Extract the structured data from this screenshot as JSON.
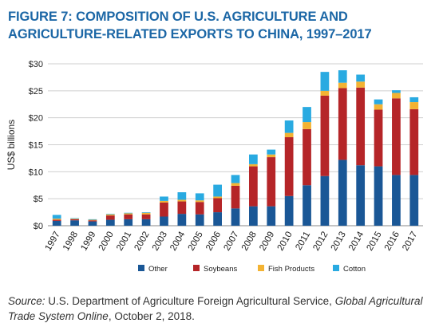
{
  "title": "FIGURE 7: COMPOSITION OF U.S. AGRICULTURE AND AGRICULTURE-RELATED EXPORTS TO CHINA, 1997–2017",
  "source": {
    "label": "Source:",
    "text_before": " U.S. Department of Agriculture Foreign Agricultural Service, ",
    "publication": "Global Agricultural Trade System Online",
    "text_after": ", October 2, 2018."
  },
  "colors": {
    "title": "#1c67a6",
    "Other": "#1a5796",
    "Soybeans": "#b52528",
    "Fish Products": "#f3b333",
    "Cotton": "#29aae1"
  },
  "chart_data": {
    "type": "bar",
    "stacked": true,
    "title": "",
    "xlabel": "",
    "ylabel": "US$ billions",
    "ylim": [
      0,
      30
    ],
    "yticks": [
      0,
      5,
      10,
      15,
      20,
      25,
      30
    ],
    "ytick_labels": [
      "$0",
      "$5",
      "$10",
      "$15",
      "$20",
      "$25",
      "$30"
    ],
    "grid": "horizontal",
    "legend_position": "bottom",
    "categories": [
      "1997",
      "1998",
      "1999",
      "2000",
      "2001",
      "2002",
      "2003",
      "2004",
      "2005",
      "2006",
      "2007",
      "2008",
      "2009",
      "2010",
      "2011",
      "2012",
      "2013",
      "2014",
      "2015",
      "2016",
      "2017"
    ],
    "series": [
      {
        "name": "Other",
        "values": [
          0.9,
          1.0,
          0.8,
          1.1,
          1.2,
          1.2,
          1.7,
          2.2,
          2.1,
          2.5,
          3.2,
          3.6,
          3.6,
          5.5,
          7.5,
          9.2,
          12.2,
          11.2,
          11.0,
          9.4,
          9.4
        ]
      },
      {
        "name": "Soybeans",
        "values": [
          0.2,
          0.2,
          0.2,
          0.8,
          0.9,
          0.9,
          2.6,
          2.3,
          2.3,
          2.6,
          4.2,
          7.4,
          9.1,
          10.9,
          10.4,
          14.9,
          13.3,
          14.4,
          10.5,
          14.2,
          12.2
        ]
      },
      {
        "name": "Fish Products",
        "values": [
          0.2,
          0.1,
          0.1,
          0.2,
          0.2,
          0.3,
          0.3,
          0.3,
          0.3,
          0.3,
          0.5,
          0.4,
          0.5,
          0.8,
          1.3,
          0.9,
          1.0,
          1.1,
          1.0,
          1.0,
          1.3
        ]
      },
      {
        "name": "Cotton",
        "values": [
          0.7,
          0.1,
          0.1,
          0.1,
          0.1,
          0.1,
          0.8,
          1.4,
          1.3,
          2.2,
          1.5,
          1.8,
          0.9,
          2.3,
          2.8,
          3.5,
          2.3,
          1.3,
          0.9,
          0.5,
          0.9
        ]
      }
    ]
  }
}
